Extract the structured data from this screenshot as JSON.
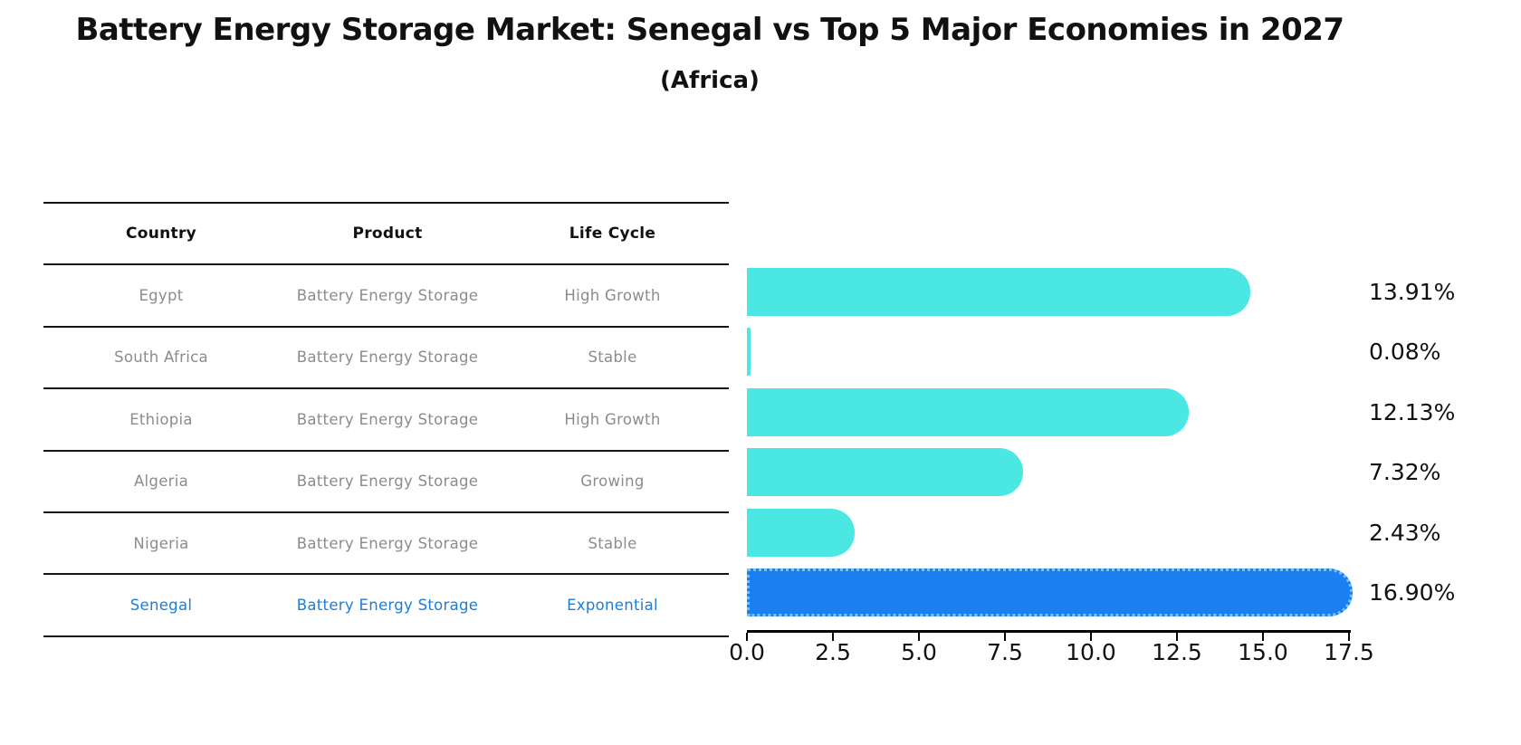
{
  "header": {
    "title": "Battery Energy Storage Market: Senegal vs Top 5 Major Economies in 2027",
    "subtitle": "(Africa)"
  },
  "table": {
    "columns": [
      "Country",
      "Product",
      "Life Cycle"
    ],
    "rows": [
      {
        "country": "Egypt",
        "product": "Battery Energy Storage",
        "life_cycle": "High Growth",
        "highlight": false
      },
      {
        "country": "South Africa",
        "product": "Battery Energy Storage",
        "life_cycle": "Stable",
        "highlight": false
      },
      {
        "country": "Ethiopia",
        "product": "Battery Energy Storage",
        "life_cycle": "High Growth",
        "highlight": false
      },
      {
        "country": "Algeria",
        "product": "Battery Energy Storage",
        "life_cycle": "Growing",
        "highlight": false
      },
      {
        "country": "Nigeria",
        "product": "Battery Energy Storage",
        "life_cycle": "Stable",
        "highlight": false
      },
      {
        "country": "Senegal",
        "product": "Battery Energy Storage",
        "life_cycle": "Exponential",
        "highlight": true
      }
    ]
  },
  "chart_data": {
    "type": "bar",
    "orientation": "horizontal",
    "title": "Battery Energy Storage Market: Senegal vs Top 5 Major Economies in 2027",
    "subtitle": "(Africa)",
    "categories": [
      "Egypt",
      "South Africa",
      "Ethiopia",
      "Algeria",
      "Nigeria",
      "Senegal"
    ],
    "values": [
      13.91,
      0.08,
      12.13,
      7.32,
      2.43,
      16.9
    ],
    "value_labels": [
      "13.91%",
      "0.08%",
      "12.13%",
      "7.32%",
      "2.43%",
      "16.90%"
    ],
    "xlim": [
      0,
      17.5
    ],
    "x_ticks": [
      "0.0",
      "2.5",
      "5.0",
      "7.5",
      "10.0",
      "12.5",
      "15.0",
      "17.5"
    ],
    "xlabel": "",
    "ylabel": "",
    "grid": false,
    "legend": false,
    "highlight_category": "Senegal",
    "colors": {
      "bar": "#4be7e3",
      "highlight_bar": "#1a7fef",
      "highlight_border": "#79c0f7",
      "text_muted": "#8c8c8c",
      "text_accent": "#1c7ed6",
      "text_dark": "#111111"
    }
  }
}
